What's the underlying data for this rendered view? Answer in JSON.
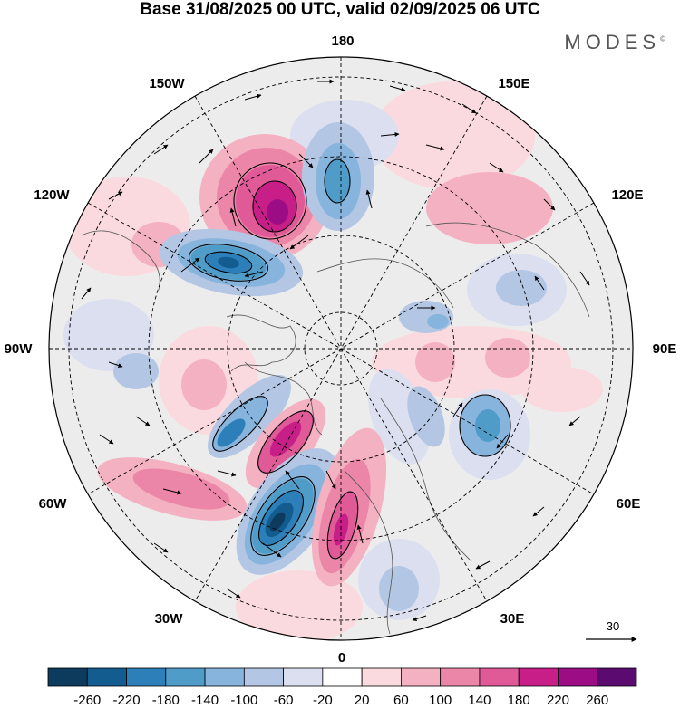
{
  "title": "Base 31/08/2025 00 UTC, valid 02/09/2025 06 UTC",
  "brand": "MODES",
  "brand_mark": "©",
  "longitude_labels": {
    "top": "180",
    "bottom": "0",
    "left": "90W",
    "right": "90E",
    "upper_left_1": "150W",
    "upper_left_2": "120W",
    "upper_right_1": "150E",
    "upper_right_2": "120E",
    "lower_left_1": "60W",
    "lower_left_2": "30W",
    "lower_right_1": "60E",
    "lower_right_2": "30E"
  },
  "reference_vector": {
    "label": "30"
  },
  "colorbar": {
    "colors": [
      "#0d3b5e",
      "#135c8f",
      "#2c7fb8",
      "#4f9cc9",
      "#86b4dc",
      "#b3c6e4",
      "#dcdff0",
      "#ffffff",
      "#fbdadf",
      "#f4b1c2",
      "#ec86a8",
      "#e05a98",
      "#c81e88",
      "#9c0c84",
      "#5b0a70"
    ],
    "tick_labels": [
      "-260",
      "-220",
      "-180",
      "-140",
      "-100",
      "-60",
      "-20",
      "20",
      "60",
      "100",
      "140",
      "180",
      "220",
      "260"
    ]
  },
  "anomaly_features": [
    {
      "name": "positive-anomaly-aleutian",
      "value": 240,
      "color": "#b0107f"
    },
    {
      "name": "negative-anomaly-canada",
      "value": -200,
      "color": "#1b5e8f"
    },
    {
      "name": "negative-anomaly-north-atlantic",
      "value": -260,
      "color": "#0d3b5e"
    },
    {
      "name": "positive-anomaly-labrador",
      "value": 200,
      "color": "#c81e88"
    },
    {
      "name": "negative-anomaly-baffin",
      "value": -160,
      "color": "#2c7fb8"
    },
    {
      "name": "positive-anomaly-eastern-atlantic",
      "value": 180,
      "color": "#d63a8f"
    },
    {
      "name": "negative-anomaly-kamchatka-ridge",
      "value": -140,
      "color": "#3f8fc4"
    },
    {
      "name": "negative-anomaly-siberia",
      "value": -140,
      "color": "#4f9cc9"
    },
    {
      "name": "positive-anomaly-siberia",
      "value": 100,
      "color": "#ec86a8"
    }
  ]
}
